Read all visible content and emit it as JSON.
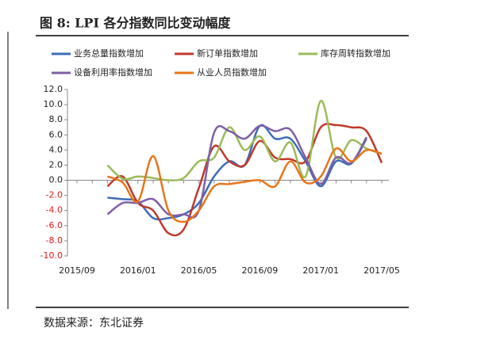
{
  "title": "图 8: LPI 各分指数同比变动幅度",
  "source": "数据来源：东北证券",
  "chart_data": {
    "type": "line",
    "categories": [
      "2015/09",
      null,
      null,
      null,
      "2016/01",
      null,
      null,
      null,
      "2016/05",
      null,
      null,
      null,
      "2016/09",
      null,
      null,
      null,
      "2017/01",
      null,
      null,
      null,
      "2017/05"
    ],
    "series": [
      {
        "name": "业务总量指数增加",
        "color": "#3e6db5",
        "values": [
          null,
          null,
          -2.3,
          -2.5,
          -2.8,
          -5.0,
          -5.0,
          -4.5,
          -3.0,
          0.5,
          2.5,
          2.0,
          7.2,
          5.5,
          5.5,
          2.5,
          -0.8,
          2.5,
          2.2,
          5.5,
          null
        ]
      },
      {
        "name": "新订单指数增加",
        "color": "#c0392b",
        "values": [
          null,
          null,
          -0.8,
          0.5,
          -3.0,
          -4.0,
          -7.0,
          -6.5,
          -1.0,
          4.5,
          2.5,
          2.0,
          5.2,
          3.0,
          2.8,
          2.5,
          7.0,
          7.3,
          7.0,
          6.5,
          2.3
        ]
      },
      {
        "name": "库存周转指数增加",
        "color": "#9bbb59",
        "values": [
          null,
          null,
          2.0,
          0.2,
          0.5,
          0.3,
          0.0,
          0.3,
          2.5,
          3.0,
          7.0,
          4.0,
          5.8,
          2.5,
          5.0,
          0.5,
          10.5,
          3.0,
          5.3,
          4.2,
          3.5
        ]
      },
      {
        "name": "设备利用率指数增加",
        "color": "#7f5fa6",
        "values": [
          null,
          null,
          -4.5,
          -3.0,
          -3.0,
          -2.5,
          -4.5,
          -4.5,
          -4.0,
          6.3,
          6.5,
          5.5,
          7.2,
          6.5,
          6.7,
          3.0,
          -0.5,
          3.0,
          2.3,
          5.7,
          null
        ]
      },
      {
        "name": "从业人员指数增加",
        "color": "#e8751a",
        "values": [
          null,
          null,
          0.5,
          -0.3,
          -2.8,
          3.2,
          -4.0,
          -5.5,
          -4.0,
          -0.8,
          -0.5,
          -0.2,
          0.0,
          -0.8,
          2.5,
          -0.3,
          0.5,
          4.2,
          2.5,
          4.0,
          3.5
        ]
      }
    ],
    "ylim": [
      -10,
      12
    ],
    "yticks": [
      {
        "value": -10,
        "label": "-10.0"
      },
      {
        "value": -8,
        "label": "-8.0"
      },
      {
        "value": -6,
        "label": "-6.0"
      },
      {
        "value": -4,
        "label": "-4.0"
      },
      {
        "value": -2,
        "label": "-2.0"
      },
      {
        "value": 0,
        "label": "0.0"
      },
      {
        "value": 2,
        "label": "2.0"
      },
      {
        "value": 4,
        "label": "4.0"
      },
      {
        "value": 6,
        "label": "6.0"
      },
      {
        "value": 8,
        "label": "8.0"
      },
      {
        "value": 10,
        "label": "10.0"
      },
      {
        "value": 12,
        "label": "12.0"
      }
    ],
    "grid": false
  }
}
